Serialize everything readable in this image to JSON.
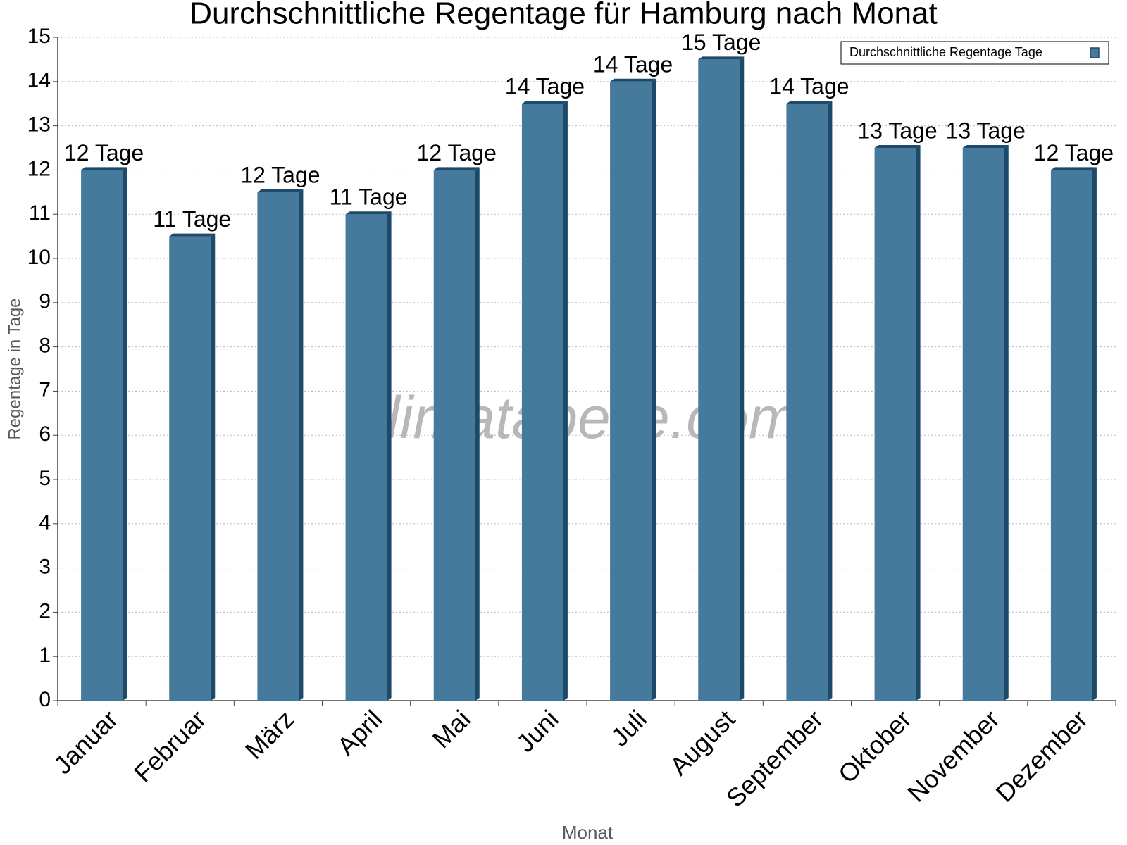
{
  "chart_data": {
    "type": "bar",
    "title": "Durchschnittliche Regentage für Hamburg nach Monat",
    "x_label": "Monat",
    "y_label": "Regentage in Tage",
    "watermark": "klimatabelle.com",
    "categories": [
      "Januar",
      "Februar",
      "März",
      "April",
      "Mai",
      "Juni",
      "Juli",
      "August",
      "September",
      "Oktober",
      "November",
      "Dezember"
    ],
    "series": [
      {
        "name": "Durchschnittliche Regentage Tage",
        "color": "#467a9c",
        "values": [
          12,
          10.5,
          11.5,
          11,
          12,
          13.5,
          14,
          14.5,
          13.5,
          12.5,
          12.5,
          12
        ],
        "value_labels": [
          "12 Tage",
          "11 Tage",
          "12 Tage",
          "11 Tage",
          "12 Tage",
          "14 Tage",
          "14 Tage",
          "15 Tage",
          "14 Tage",
          "13 Tage",
          "13 Tage",
          "12 Tage"
        ]
      }
    ],
    "ylim": [
      0,
      15
    ],
    "yticks": [
      0,
      1,
      2,
      3,
      4,
      5,
      6,
      7,
      8,
      9,
      10,
      11,
      12,
      13,
      14,
      15
    ],
    "grid": true,
    "legend": "top-right"
  }
}
